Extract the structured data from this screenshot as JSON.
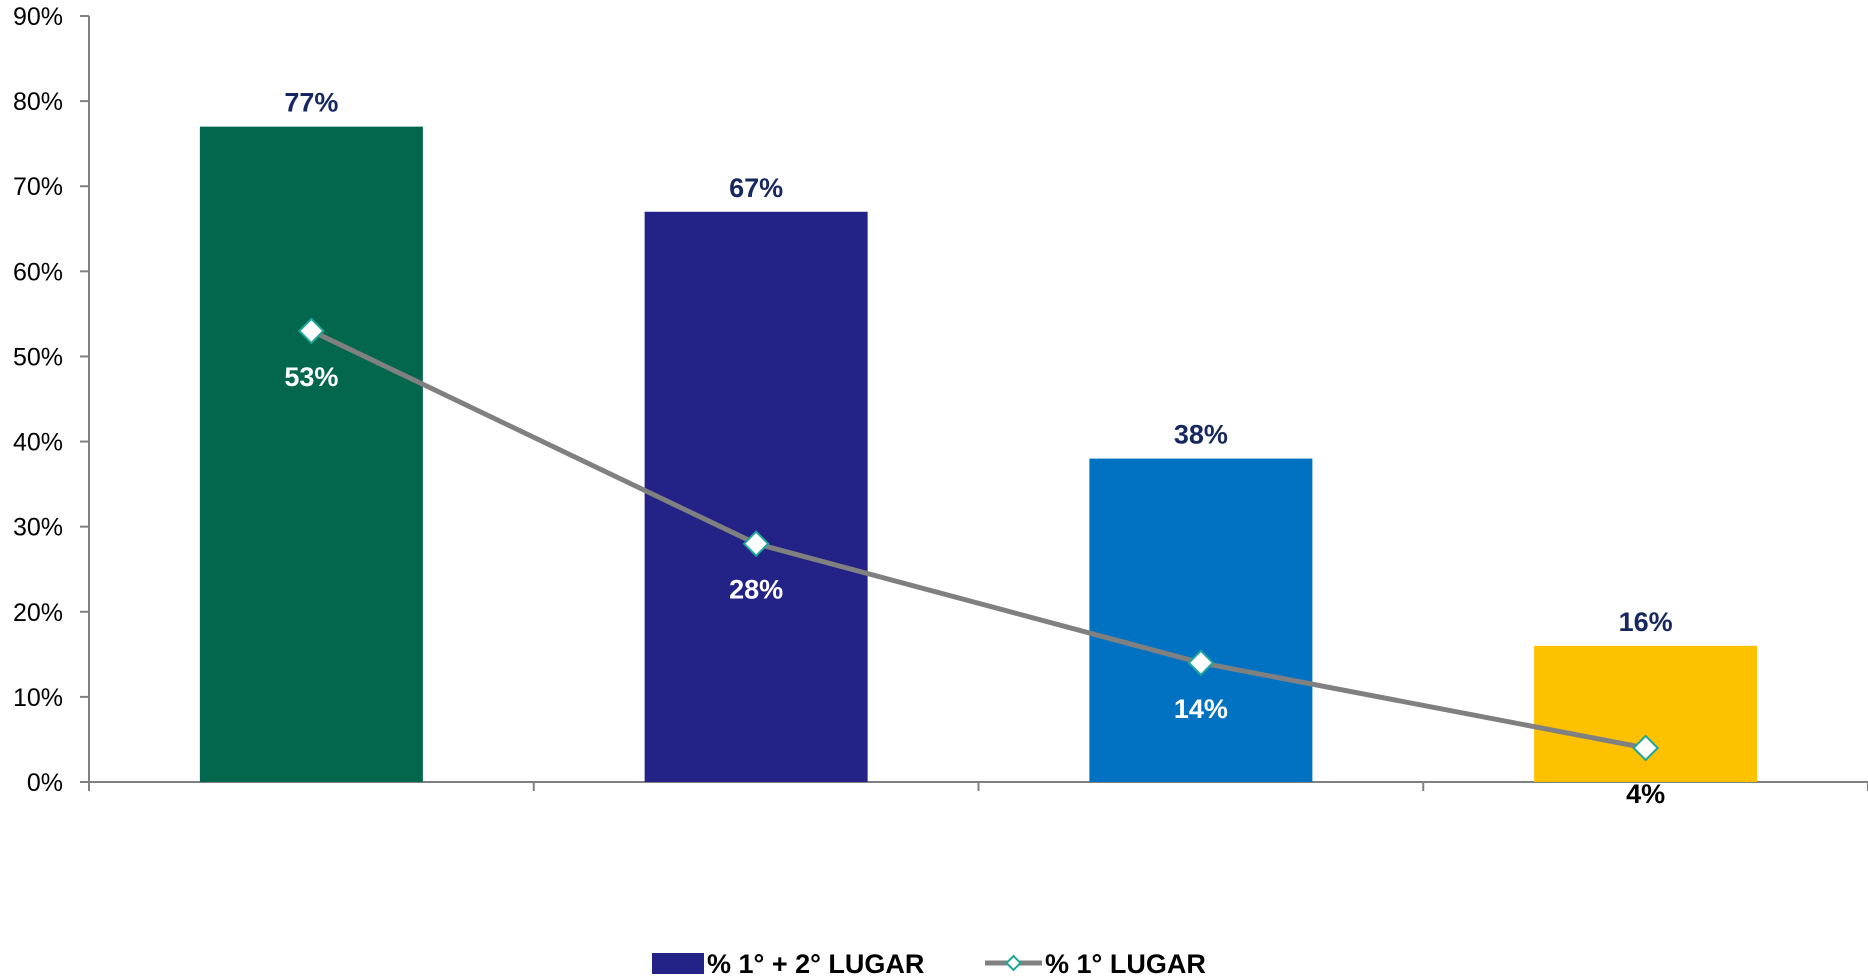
{
  "chart_data": {
    "type": "bar",
    "categories": [
      "",
      "",
      "",
      ""
    ],
    "ylim": [
      0,
      90
    ],
    "y_ticks": [
      "0%",
      "10%",
      "20%",
      "30%",
      "40%",
      "50%",
      "60%",
      "70%",
      "80%",
      "90%"
    ],
    "grid": false,
    "legend_position": "bottom",
    "series": [
      {
        "name": "% 1° + 2° LUGAR",
        "kind": "bar",
        "values": [
          77,
          67,
          38,
          16
        ],
        "labels": [
          "77%",
          "67%",
          "38%",
          "16%"
        ],
        "colors": [
          "#02674C",
          "#232387",
          "#0172C2",
          "#FDC100"
        ],
        "label_color": "#17275F",
        "legend_color": "#232387"
      },
      {
        "name": "% 1° LUGAR",
        "kind": "line",
        "values": [
          53,
          28,
          14,
          4
        ],
        "labels": [
          "53%",
          "28%",
          "14%",
          "4%"
        ],
        "line_color": "#808080",
        "marker_border": "#1FA69A",
        "marker_fill": "#FFFFFF",
        "label_colors": [
          "#FFFFFF",
          "#FFFFFF",
          "#FFFFFF",
          "#000000"
        ]
      }
    ]
  }
}
